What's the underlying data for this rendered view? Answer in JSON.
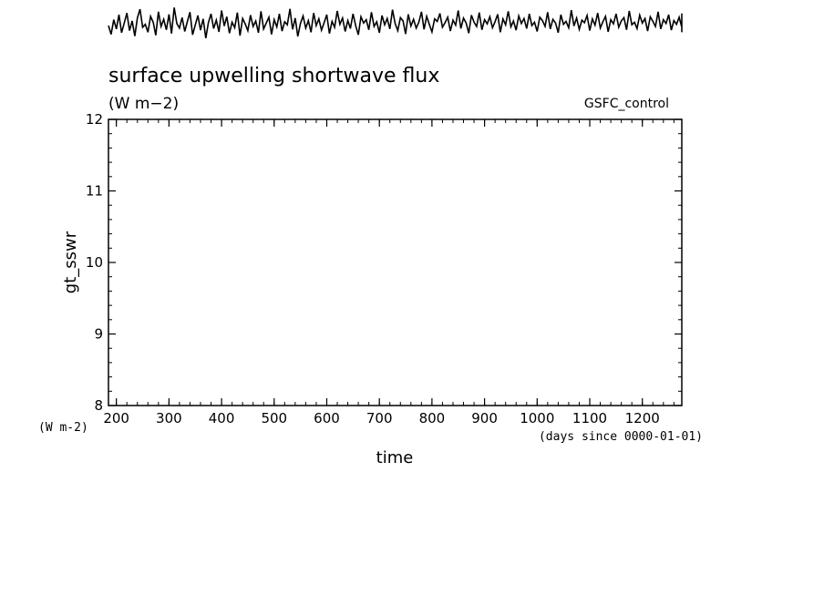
{
  "chart_data": {
    "type": "line",
    "title": "surface upwelling shortwave flux",
    "units_label": "(W m−2)",
    "dataset_label": "GSFC_control",
    "xlabel": "time",
    "x_units": "(days since 0000-01-01)",
    "ylabel": "gt_sswr",
    "y_units": "(W m-2)",
    "xlim": [
      185,
      1275
    ],
    "ylim": [
      8,
      12
    ],
    "x_ticks": [
      200,
      300,
      400,
      500,
      600,
      700,
      800,
      900,
      1000,
      1100,
      1200
    ],
    "x_tick_labels": [
      "200",
      "300",
      "400",
      "500",
      "600",
      "700",
      "800",
      "900",
      "1000",
      "1100",
      "1200"
    ],
    "y_ticks": [
      8,
      9,
      10,
      11,
      12
    ],
    "y_tick_labels": [
      "8",
      "9",
      "10",
      "11",
      "12"
    ],
    "x_minor_step": 20,
    "y_minor_step": 0.2,
    "grid": false,
    "strip": {
      "description_type": "noisy line",
      "x_start": 185,
      "x_step": 5,
      "values": [
        0.52,
        0.31,
        0.66,
        0.44,
        0.78,
        0.35,
        0.58,
        0.82,
        0.4,
        0.63,
        0.27,
        0.7,
        0.91,
        0.48,
        0.55,
        0.36,
        0.74,
        0.6,
        0.29,
        0.85,
        0.5,
        0.67,
        0.42,
        0.79,
        0.33,
        0.95,
        0.57,
        0.46,
        0.71,
        0.38,
        0.62,
        0.84,
        0.3,
        0.53,
        0.76,
        0.41,
        0.68,
        0.22,
        0.59,
        0.8,
        0.45,
        0.65,
        0.37,
        0.88,
        0.51,
        0.73,
        0.34,
        0.6,
        0.47,
        0.83,
        0.28,
        0.69,
        0.56,
        0.4,
        0.77,
        0.5,
        0.63,
        0.35,
        0.86,
        0.44,
        0.58,
        0.72,
        0.31,
        0.66,
        0.49,
        0.8,
        0.39,
        0.61,
        0.54,
        0.92,
        0.43,
        0.7,
        0.26,
        0.57,
        0.75,
        0.46,
        0.64,
        0.36,
        0.82,
        0.52,
        0.68,
        0.41,
        0.59,
        0.78,
        0.33,
        0.62,
        0.48,
        0.87,
        0.55,
        0.7,
        0.38,
        0.64,
        0.45,
        0.8,
        0.52,
        0.3,
        0.73,
        0.58,
        0.66,
        0.42,
        0.84,
        0.5,
        0.61,
        0.35,
        0.76,
        0.54,
        0.69,
        0.44,
        0.9,
        0.57,
        0.4,
        0.71,
        0.63,
        0.32,
        0.79,
        0.51,
        0.67,
        0.46,
        0.6,
        0.85,
        0.43,
        0.74,
        0.55,
        0.37,
        0.68,
        0.62,
        0.81,
        0.48,
        0.59,
        0.72,
        0.39,
        0.65,
        0.53,
        0.88,
        0.45,
        0.7,
        0.58,
        0.34,
        0.77,
        0.6,
        0.5,
        0.83,
        0.42,
        0.66,
        0.56,
        0.73,
        0.47,
        0.61,
        0.79,
        0.36,
        0.68,
        0.54,
        0.86,
        0.49,
        0.63,
        0.41,
        0.75,
        0.57,
        0.69,
        0.45,
        0.8,
        0.52,
        0.6,
        0.38,
        0.72,
        0.64,
        0.5,
        0.84,
        0.44,
        0.67,
        0.58,
        0.35,
        0.78,
        0.55,
        0.62,
        0.47,
        0.89,
        0.51,
        0.7,
        0.43,
        0.65,
        0.59,
        0.76,
        0.4,
        0.68,
        0.53,
        0.82,
        0.46,
        0.61,
        0.74,
        0.37,
        0.66,
        0.56,
        0.8,
        0.48,
        0.63,
        0.71,
        0.42,
        0.87,
        0.54,
        0.6,
        0.45,
        0.77,
        0.58,
        0.69,
        0.39,
        0.73,
        0.62,
        0.5,
        0.85,
        0.44,
        0.66,
        0.57,
        0.78,
        0.41,
        0.64,
        0.55,
        0.72,
        0.48,
        0.81,
        0.36,
        0.67,
        0.6,
        0.52,
        0.75,
        0.46,
        0.63,
        0.7
      ]
    }
  }
}
